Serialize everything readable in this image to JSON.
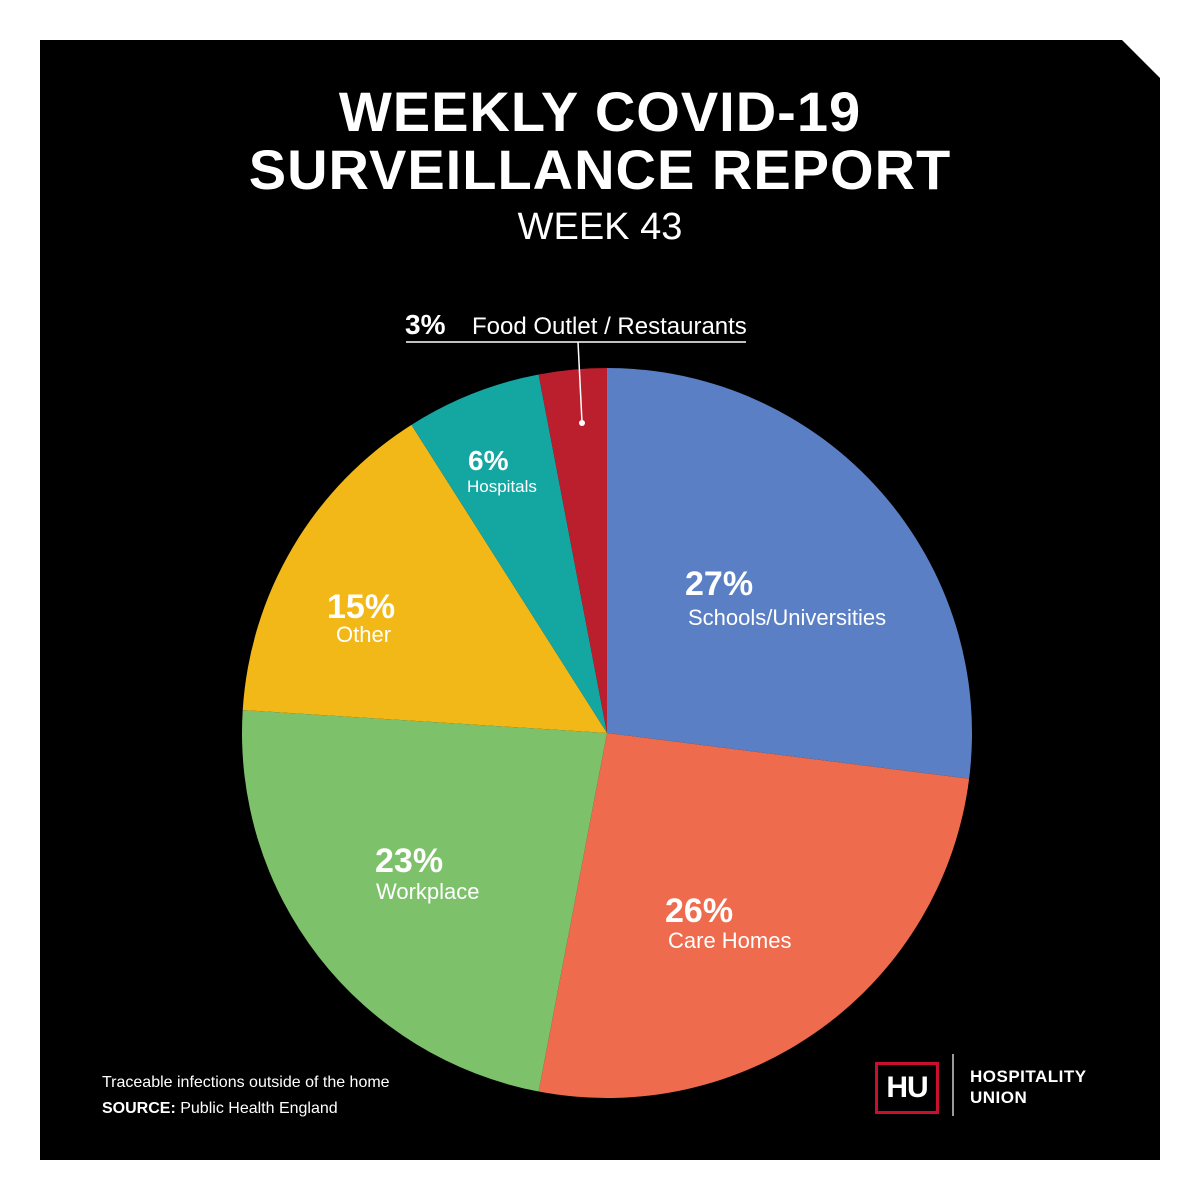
{
  "header": {
    "title_line1": "WEEKLY COVID-19",
    "title_line2": "SURVEILLANCE REPORT",
    "subtitle": "WEEK 43"
  },
  "footer": {
    "note": "Traceable infections outside of the home",
    "source_label": "SOURCE:",
    "source_value": "Public Health England"
  },
  "logo": {
    "mark": "HU",
    "name_line1": "HOSPITALITY",
    "name_line2": "UNION",
    "mark_border_color": "#c8102e"
  },
  "colors": {
    "background": "#000000",
    "text": "#ffffff"
  },
  "chart_data": {
    "type": "pie",
    "start": "12 o'clock, clockwise",
    "slices": [
      {
        "label": "Schools/Universities",
        "pct_label": "27%",
        "value": 27,
        "color": "#5a7fc4"
      },
      {
        "label": "Care Homes",
        "pct_label": "26%",
        "value": 26,
        "color": "#ee6b4d"
      },
      {
        "label": "Workplace",
        "pct_label": "23%",
        "value": 23,
        "color": "#7dc16b"
      },
      {
        "label": "Other",
        "pct_label": "15%",
        "value": 15,
        "color": "#f2b817"
      },
      {
        "label": "Hospitals",
        "pct_label": "6%",
        "value": 6,
        "color": "#14a7a2"
      },
      {
        "label": "Food Outlet / Restaurants",
        "pct_label": "3%",
        "value": 3,
        "color": "#bb1e2d"
      }
    ]
  }
}
